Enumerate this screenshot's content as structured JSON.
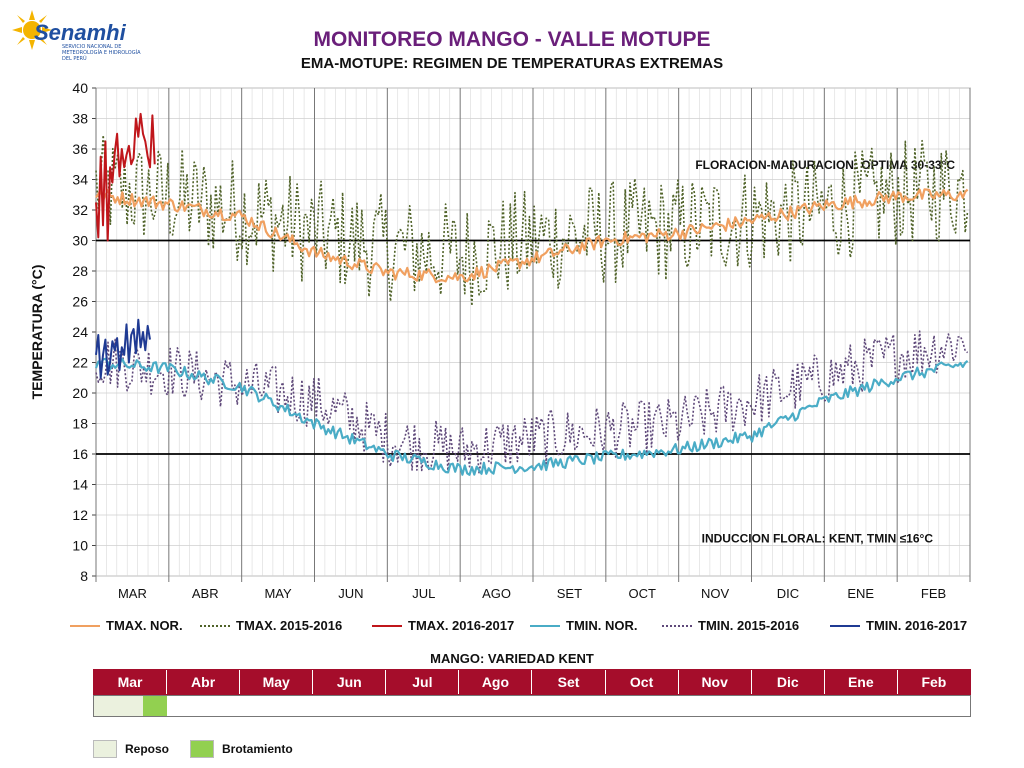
{
  "header": {
    "logo_text": "Senamhi",
    "logo_sub": "SERVICIO NACIONAL DE METEOROLOGÍA E HIDROLOGÍA DEL PERÚ",
    "title": "MONITOREO MANGO - VALLE MOTUPE",
    "subtitle": "EMA-MOTUPE: REGIMEN DE TEMPERATURAS EXTREMAS"
  },
  "colors": {
    "title": "#6a1f7a",
    "tmax_nor": "#f0a060",
    "tmax_1516": "#4f6228",
    "tmax_1617": "#c0161b",
    "tmin_nor": "#4aacc6",
    "tmin_1516": "#5f497a",
    "tmin_1617": "#1f3a93",
    "phenology_header": "#a50d2b",
    "reposo": "#ebf1de",
    "brotamiento": "#92d050"
  },
  "chart_data": {
    "type": "line",
    "ylabel": "TEMPERATURA (°C)",
    "ylim": [
      8,
      40
    ],
    "yticks": [
      8,
      10,
      12,
      14,
      16,
      18,
      20,
      22,
      24,
      26,
      28,
      30,
      32,
      34,
      36,
      38,
      40
    ],
    "x_categories": [
      "MAR",
      "ABR",
      "MAY",
      "JUN",
      "JUL",
      "AGO",
      "SET",
      "OCT",
      "NOV",
      "DIC",
      "ENE",
      "FEB"
    ],
    "reference_lines": [
      30,
      16
    ],
    "annotations": [
      {
        "text": "FLORACION-MADURACION: OPTIMA 30-33°C"
      },
      {
        "text": "INDUCCION FLORAL: KENT, TMIN ≤16°C"
      }
    ],
    "series": [
      {
        "name": "TMAX. NOR.",
        "style": "solid",
        "monthly_values": [
          33.0,
          32.4,
          31.6,
          29.2,
          27.9,
          27.6,
          28.8,
          30.0,
          30.5,
          31.3,
          32.3,
          32.9,
          33.0
        ]
      },
      {
        "name": "TMAX. 2015-2016",
        "style": "dotted",
        "monthly_values": [
          33.5,
          32.8,
          32.0,
          30.5,
          29.5,
          29.0,
          30.0,
          30.5,
          30.8,
          31.5,
          32.0,
          33.0,
          33.5
        ]
      },
      {
        "name": "TMAX. 2016-2017",
        "style": "solid",
        "daily_values": [
          32.5,
          30.2,
          35.5,
          31.0,
          36.5,
          30.0,
          34.8,
          33.8,
          35.8,
          37.0,
          34.2,
          36.0,
          34.8,
          35.6,
          36.2,
          35.0,
          35.4,
          38.0,
          36.8,
          38.3,
          37.0,
          36.5,
          35.5,
          34.8,
          38.2,
          35.0
        ]
      },
      {
        "name": "TMIN. NOR.",
        "style": "solid",
        "monthly_values": [
          22.0,
          21.6,
          20.4,
          18.0,
          16.0,
          15.0,
          15.2,
          15.8,
          16.3,
          17.2,
          19.5,
          21.0,
          22.0
        ]
      },
      {
        "name": "TMIN. 2015-2016",
        "style": "dotted",
        "monthly_values": [
          22.2,
          21.5,
          20.5,
          19.5,
          17.0,
          16.2,
          17.0,
          17.5,
          18.0,
          19.5,
          21.0,
          22.5,
          23.5
        ]
      },
      {
        "name": "TMIN. 2016-2017",
        "style": "solid",
        "daily_values": [
          22.5,
          23.8,
          21.0,
          22.5,
          23.5,
          21.2,
          22.0,
          23.4,
          22.8,
          23.6,
          21.5,
          23.0,
          22.5,
          24.5,
          22.0,
          23.8,
          24.2,
          22.6,
          24.8,
          23.0,
          24.0,
          22.8,
          24.4,
          23.5
        ]
      }
    ]
  },
  "phenology": {
    "title": "MANGO: VARIEDAD KENT",
    "months": [
      "Mar",
      "Abr",
      "May",
      "Jun",
      "Jul",
      "Ago",
      "Set",
      "Oct",
      "Nov",
      "Dic",
      "Ene",
      "Feb"
    ],
    "phases": [
      {
        "name": "Reposo",
        "start_month": 0,
        "end_month": 0.67
      },
      {
        "name": "Brotamiento",
        "start_month": 0.67,
        "end_month": 1.0
      }
    ]
  }
}
